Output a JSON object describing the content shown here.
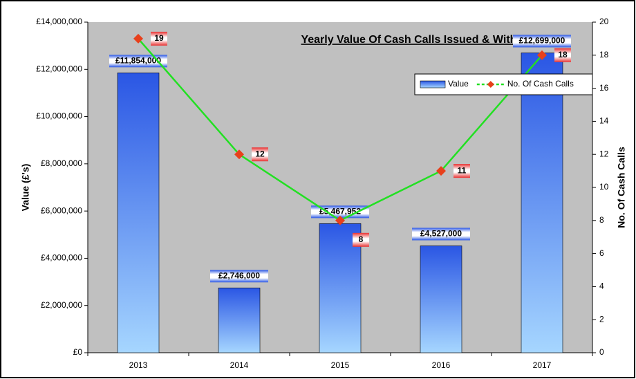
{
  "chart_data": {
    "type": "bar+line",
    "title": "Yearly Value Of Cash Calls Issued & Withdrawn",
    "y_label": "Value (£'s)",
    "y2_label": "No. Of Cash Calls",
    "categories": [
      "2013",
      "2014",
      "2015",
      "2016",
      "2017"
    ],
    "series": [
      {
        "name": "Value",
        "type": "bar",
        "color": "#2f62e8",
        "values": [
          11854000,
          2746000,
          5467952,
          4527000,
          12699000
        ],
        "value_labels": [
          "£11,854,000",
          "£2,746,000",
          "£5,467,952",
          "£4,527,000",
          "£12,699,000"
        ]
      },
      {
        "name": "No. Of Cash Calls",
        "type": "line",
        "axis": "y2",
        "color": "#22e022",
        "marker_color": "#e8401c",
        "values": [
          19,
          12,
          8,
          11,
          18
        ]
      }
    ],
    "ylim": [
      0,
      14000000
    ],
    "yticks": [
      {
        "value": 0,
        "label": "£0"
      },
      {
        "value": 2000000,
        "label": "£2,000,000"
      },
      {
        "value": 4000000,
        "label": "£4,000,000"
      },
      {
        "value": 6000000,
        "label": "£6,000,000"
      },
      {
        "value": 8000000,
        "label": "£8,000,000"
      },
      {
        "value": 10000000,
        "label": "£10,000,000"
      },
      {
        "value": 12000000,
        "label": "£12,000,000"
      },
      {
        "value": 14000000,
        "label": "£14,000,000"
      }
    ],
    "y2lim": [
      0,
      20
    ],
    "y2ticks": [
      0,
      2,
      4,
      6,
      8,
      10,
      12,
      14,
      16,
      18,
      20
    ],
    "legend": "upper right",
    "grid": false
  }
}
